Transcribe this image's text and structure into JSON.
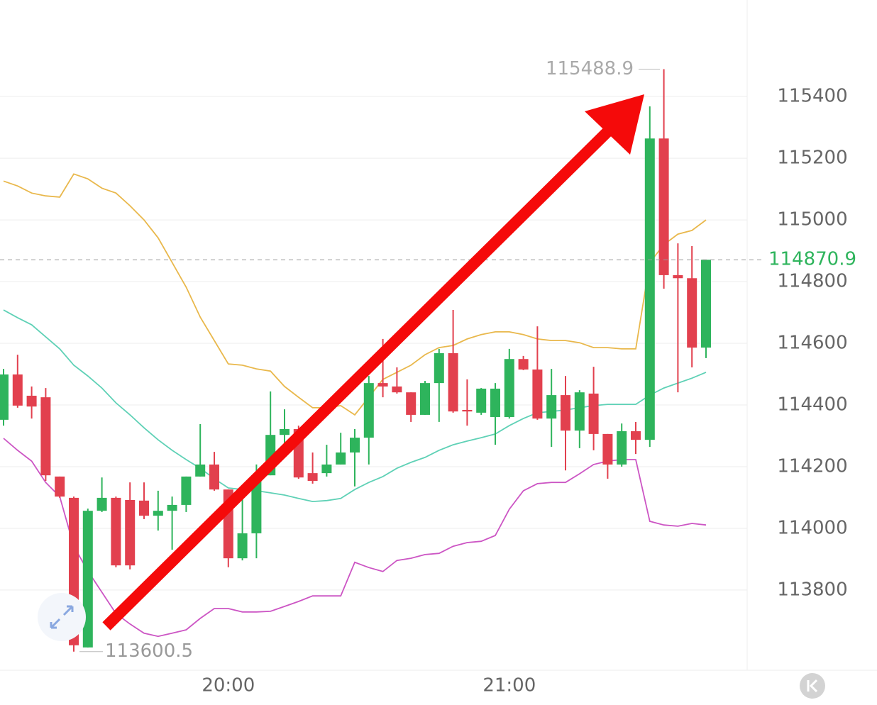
{
  "chart_data": {
    "type": "candlestick",
    "categories": [
      null,
      null,
      null,
      null,
      null,
      null,
      null,
      null,
      null,
      null,
      null,
      null,
      null,
      null,
      null,
      null,
      "20:00",
      null,
      null,
      null,
      null,
      null,
      null,
      null,
      null,
      null,
      null,
      null,
      null,
      null,
      null,
      null,
      null,
      null,
      null,
      null,
      "21:00",
      null,
      null,
      null,
      null,
      null,
      null,
      null,
      null,
      null,
      null,
      null,
      null,
      null,
      null
    ],
    "open": [
      114352,
      114499,
      114430,
      114425,
      114168,
      114099,
      113614,
      114057,
      114099,
      114092,
      114090,
      114041,
      114057,
      114076,
      114168,
      114207,
      114126,
      113903,
      113984,
      114172,
      114303,
      114322,
      114179,
      114179,
      114207,
      114246,
      114294,
      114471,
      114460,
      114441,
      114368,
      114471,
      114568,
      114384,
      114375,
      114361,
      114361,
      114549,
      114515,
      114356,
      114432,
      114317,
      114437,
      114306,
      114207,
      114315,
      114287,
      115264,
      114821,
      114811,
      114586
    ],
    "high": [
      114517,
      114563,
      114460,
      114455,
      114168,
      114103,
      114064,
      114165,
      114103,
      114149,
      114149,
      114122,
      114103,
      114168,
      114338,
      114248,
      114126,
      114103,
      114207,
      114444,
      114386,
      114333,
      114246,
      114271,
      114310,
      114322,
      114494,
      114614,
      114522,
      114441,
      114478,
      114582,
      114708,
      114483,
      114455,
      114471,
      114582,
      114559,
      114655,
      114517,
      114494,
      114448,
      114524,
      114306,
      114340,
      114345,
      115368,
      115488.9,
      114924,
      114915,
      114870.9
    ],
    "low": [
      114333,
      114391,
      114356,
      114154,
      114099,
      113600.5,
      113614,
      114053,
      113874,
      113867,
      114030,
      113993,
      113931,
      114053,
      114168,
      114122,
      113874,
      113896,
      113903,
      114172,
      114241,
      114161,
      114145,
      114168,
      114207,
      114136,
      114207,
      114425,
      114437,
      114345,
      114368,
      114345,
      114375,
      114333,
      114368,
      114271,
      114356,
      114513,
      114352,
      114264,
      114188,
      114260,
      114253,
      114161,
      114200,
      114241,
      114264,
      114777,
      114441,
      114522,
      114552
    ],
    "close": [
      114499,
      114398,
      114395,
      114172,
      114103,
      113621,
      114057,
      114099,
      113880,
      113880,
      114041,
      114057,
      114076,
      114168,
      114207,
      114126,
      113903,
      113984,
      114172,
      114303,
      114322,
      114165,
      114154,
      114207,
      114246,
      114294,
      114471,
      114460,
      114441,
      114368,
      114471,
      114568,
      114379,
      114379,
      114453,
      114453,
      114549,
      114515,
      114356,
      114432,
      114317,
      114441,
      114306,
      114207,
      114315,
      114287,
      115264,
      114821,
      114811,
      114586,
      114870.9
    ],
    "up_color": "#2eb45c",
    "down_color": "#e2404e",
    "bands": [
      {
        "color": "#e9b84c",
        "values": [
          115126,
          115110,
          115087,
          115078,
          115074,
          115149,
          115133,
          115103,
          115087,
          115046,
          115000,
          114942,
          114862,
          114782,
          114685,
          114609,
          114533,
          114529,
          114517,
          114510,
          114460,
          114425,
          114391,
          114391,
          114398,
          114368,
          114425,
          114483,
          114506,
          114529,
          114563,
          114586,
          114593,
          114614,
          114628,
          114637,
          114637,
          114628,
          114614,
          114609,
          114609,
          114602,
          114586,
          114586,
          114582,
          114582,
          114862,
          114920,
          114954,
          114966,
          115000
        ]
      },
      {
        "color": "#5fd1b6",
        "values": [
          114708,
          114683,
          114660,
          114621,
          114582,
          114529,
          114494,
          114455,
          114407,
          114368,
          114326,
          114287,
          114253,
          114223,
          114195,
          114161,
          114131,
          114126,
          114122,
          114115,
          114108,
          114097,
          114087,
          114090,
          114097,
          114126,
          114149,
          114168,
          114195,
          114214,
          114230,
          114253,
          114271,
          114283,
          114294,
          114306,
          114333,
          114356,
          114375,
          114379,
          114384,
          114391,
          114398,
          114402,
          114402,
          114402,
          114432,
          114455,
          114471,
          114487,
          114506
        ]
      },
      {
        "color": "#cc55c4",
        "values": [
          114292,
          114253,
          114218,
          114149,
          114103,
          113942,
          113862,
          113793,
          113724,
          113690,
          113660,
          113650,
          113660,
          113671,
          113708,
          113740,
          113740,
          113729,
          113729,
          113731,
          113747,
          113763,
          113781,
          113781,
          113781,
          113890,
          113873,
          113860,
          113896,
          113903,
          113915,
          113919,
          113942,
          113954,
          113958,
          113977,
          114062,
          114122,
          114145,
          114149,
          114149,
          114177,
          114207,
          114218,
          114223,
          114223,
          114023,
          114011,
          114007,
          114016,
          114011
        ]
      }
    ],
    "ylim": [
      113540,
      115713
    ],
    "yticks": [
      113800,
      114000,
      114200,
      114400,
      114600,
      114800,
      115000,
      115200,
      115400
    ],
    "grid": true
  }
}
